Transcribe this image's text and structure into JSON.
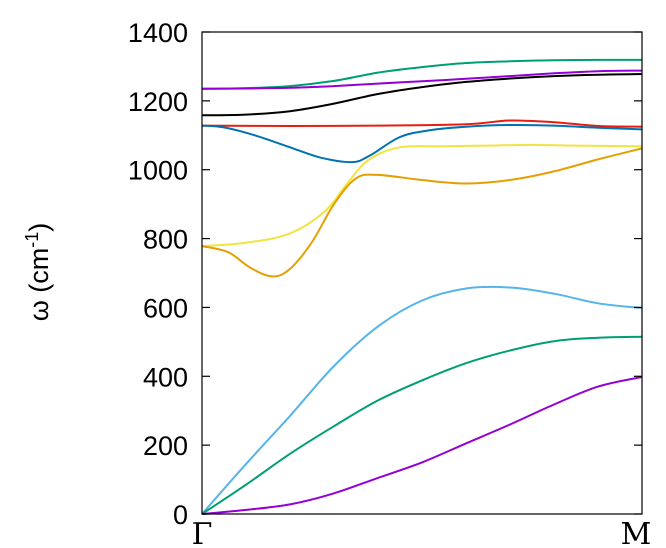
{
  "chart_data": {
    "type": "line",
    "ylabel": "ω (cm",
    "ylabel_sup": "-1",
    "ylabel_close": ")",
    "xlabel": "",
    "ylim": [
      0,
      1400
    ],
    "xlim": [
      0,
      1
    ],
    "yticks": [
      "0",
      "200",
      "400",
      "600",
      "800",
      "1000",
      "1200",
      "1400"
    ],
    "xticks": [
      {
        "label": "Γ",
        "x": 0
      },
      {
        "label": "M",
        "x": 1
      }
    ],
    "grid": false,
    "series": [
      {
        "color": "#009e73",
        "points": [
          [
            0,
            1235
          ],
          [
            0.1,
            1237
          ],
          [
            0.2,
            1243
          ],
          [
            0.3,
            1258
          ],
          [
            0.4,
            1282
          ],
          [
            0.5,
            1298
          ],
          [
            0.6,
            1310
          ],
          [
            0.7,
            1315
          ],
          [
            0.8,
            1318
          ],
          [
            0.9,
            1319
          ],
          [
            1.0,
            1319
          ]
        ]
      },
      {
        "color": "#9400d3",
        "points": [
          [
            0,
            1235
          ],
          [
            0.1,
            1236
          ],
          [
            0.2,
            1238
          ],
          [
            0.3,
            1243
          ],
          [
            0.4,
            1250
          ],
          [
            0.5,
            1257
          ],
          [
            0.6,
            1264
          ],
          [
            0.7,
            1272
          ],
          [
            0.8,
            1280
          ],
          [
            0.9,
            1286
          ],
          [
            1.0,
            1288
          ]
        ]
      },
      {
        "color": "#000000",
        "points": [
          [
            0,
            1158
          ],
          [
            0.1,
            1160
          ],
          [
            0.2,
            1170
          ],
          [
            0.3,
            1192
          ],
          [
            0.4,
            1220
          ],
          [
            0.5,
            1240
          ],
          [
            0.6,
            1255
          ],
          [
            0.7,
            1265
          ],
          [
            0.8,
            1272
          ],
          [
            0.9,
            1276
          ],
          [
            1.0,
            1278
          ]
        ]
      },
      {
        "color": "#e51e10",
        "points": [
          [
            0,
            1128
          ],
          [
            0.2,
            1127
          ],
          [
            0.4,
            1128
          ],
          [
            0.6,
            1132
          ],
          [
            0.7,
            1143
          ],
          [
            0.8,
            1138
          ],
          [
            0.9,
            1127
          ],
          [
            1.0,
            1125
          ]
        ]
      },
      {
        "color": "#0072b2",
        "points": [
          [
            0,
            1128
          ],
          [
            0.05,
            1123
          ],
          [
            0.12,
            1100
          ],
          [
            0.2,
            1065
          ],
          [
            0.27,
            1035
          ],
          [
            0.34,
            1022
          ],
          [
            0.38,
            1040
          ],
          [
            0.45,
            1095
          ],
          [
            0.52,
            1115
          ],
          [
            0.6,
            1125
          ],
          [
            0.7,
            1130
          ],
          [
            0.8,
            1128
          ],
          [
            0.9,
            1122
          ],
          [
            1.0,
            1117
          ]
        ]
      },
      {
        "color": "#f0e442",
        "points": [
          [
            0,
            778
          ],
          [
            0.1,
            788
          ],
          [
            0.2,
            815
          ],
          [
            0.28,
            880
          ],
          [
            0.33,
            960
          ],
          [
            0.38,
            1030
          ],
          [
            0.45,
            1065
          ],
          [
            0.55,
            1068
          ],
          [
            0.65,
            1070
          ],
          [
            0.75,
            1072
          ],
          [
            0.85,
            1070
          ],
          [
            1.0,
            1068
          ]
        ]
      },
      {
        "color": "#e69f00",
        "points": [
          [
            0,
            778
          ],
          [
            0.06,
            760
          ],
          [
            0.11,
            715
          ],
          [
            0.16,
            690
          ],
          [
            0.2,
            712
          ],
          [
            0.25,
            790
          ],
          [
            0.3,
            900
          ],
          [
            0.35,
            975
          ],
          [
            0.4,
            985
          ],
          [
            0.5,
            970
          ],
          [
            0.6,
            960
          ],
          [
            0.7,
            970
          ],
          [
            0.8,
            995
          ],
          [
            0.9,
            1030
          ],
          [
            1.0,
            1062
          ]
        ]
      },
      {
        "color": "#56b4e9",
        "points": [
          [
            0,
            0
          ],
          [
            0.1,
            145
          ],
          [
            0.2,
            285
          ],
          [
            0.3,
            430
          ],
          [
            0.4,
            545
          ],
          [
            0.5,
            620
          ],
          [
            0.6,
            655
          ],
          [
            0.7,
            658
          ],
          [
            0.8,
            640
          ],
          [
            0.9,
            612
          ],
          [
            1.0,
            598
          ]
        ]
      },
      {
        "color": "#009e73",
        "points": [
          [
            0,
            0
          ],
          [
            0.1,
            85
          ],
          [
            0.2,
            175
          ],
          [
            0.3,
            255
          ],
          [
            0.4,
            330
          ],
          [
            0.5,
            388
          ],
          [
            0.6,
            438
          ],
          [
            0.7,
            475
          ],
          [
            0.8,
            502
          ],
          [
            0.9,
            512
          ],
          [
            1.0,
            515
          ]
        ]
      },
      {
        "color": "#9400d3",
        "points": [
          [
            0,
            0
          ],
          [
            0.1,
            12
          ],
          [
            0.2,
            28
          ],
          [
            0.3,
            60
          ],
          [
            0.4,
            105
          ],
          [
            0.5,
            150
          ],
          [
            0.6,
            205
          ],
          [
            0.7,
            260
          ],
          [
            0.8,
            318
          ],
          [
            0.9,
            370
          ],
          [
            1.0,
            398
          ]
        ]
      }
    ]
  }
}
